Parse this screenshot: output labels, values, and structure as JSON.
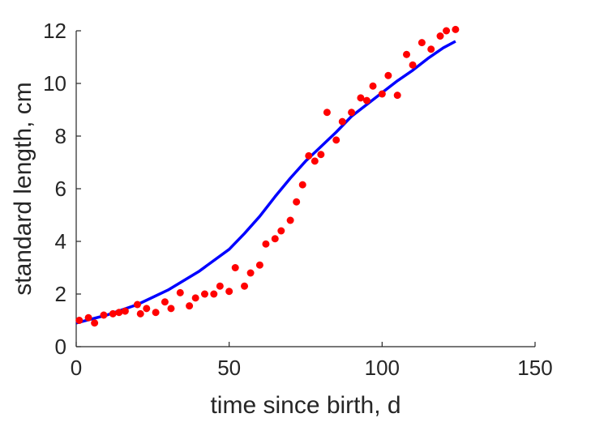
{
  "chart_data": {
    "type": "scatter",
    "xlabel": "time since birth, d",
    "ylabel": "standard length, cm",
    "xlim": [
      0,
      150
    ],
    "ylim": [
      0,
      12
    ],
    "xticks": [
      "0",
      "50",
      "100",
      "150"
    ],
    "yticks": [
      "0",
      "2",
      "4",
      "6",
      "8",
      "10",
      "12"
    ],
    "grid": false,
    "legend": "none",
    "series": [
      {
        "kind": "points",
        "color": "#ff0000",
        "x": [
          1,
          4,
          6,
          9,
          12,
          14,
          16,
          20,
          21,
          23,
          26,
          29,
          31,
          34,
          37,
          39,
          42,
          45,
          47,
          50,
          52,
          55,
          57,
          60,
          62,
          65,
          67,
          70,
          72,
          74,
          76,
          78,
          80,
          82,
          85,
          87,
          90,
          93,
          95,
          97,
          100,
          102,
          105,
          108,
          110,
          113,
          116,
          119,
          121,
          124
        ],
        "y": [
          1.0,
          1.1,
          0.9,
          1.2,
          1.25,
          1.3,
          1.35,
          1.6,
          1.25,
          1.45,
          1.3,
          1.7,
          1.45,
          2.05,
          1.55,
          1.85,
          2.0,
          2.0,
          2.3,
          2.1,
          3.0,
          2.3,
          2.8,
          3.1,
          3.9,
          4.1,
          4.4,
          4.8,
          5.5,
          6.15,
          7.25,
          7.05,
          7.3,
          8.9,
          7.85,
          8.55,
          8.9,
          9.45,
          9.35,
          9.9,
          9.6,
          10.3,
          9.55,
          11.1,
          10.7,
          11.55,
          11.3,
          11.8,
          12.0,
          12.05
        ]
      },
      {
        "kind": "line",
        "color": "#0000ff",
        "x": [
          0,
          10,
          20,
          30,
          40,
          50,
          55,
          60,
          65,
          70,
          75,
          80,
          85,
          90,
          95,
          100,
          105,
          110,
          115,
          120,
          124
        ],
        "y": [
          0.9,
          1.2,
          1.6,
          2.15,
          2.85,
          3.7,
          4.3,
          4.95,
          5.7,
          6.4,
          7.05,
          7.6,
          8.15,
          8.75,
          9.2,
          9.65,
          10.1,
          10.5,
          10.95,
          11.35,
          11.6
        ]
      }
    ]
  }
}
